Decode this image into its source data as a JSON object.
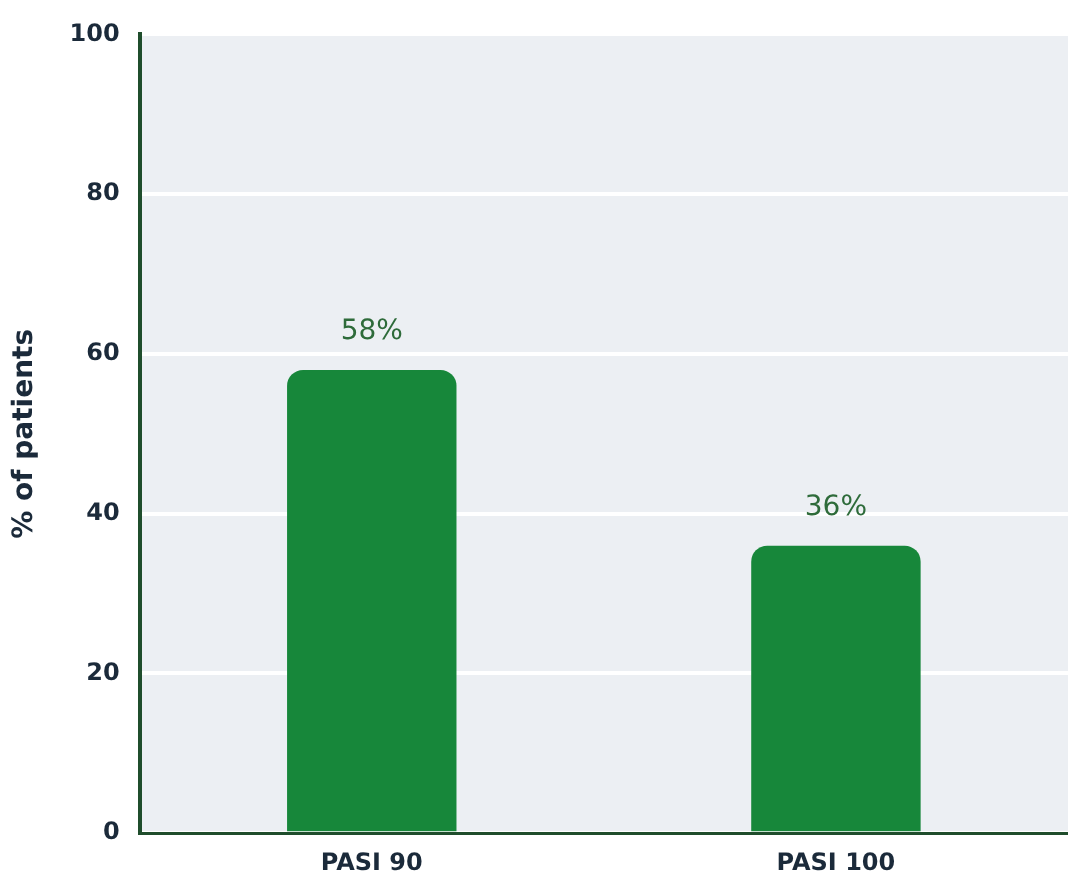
{
  "chart_data": {
    "type": "bar",
    "ylabel": "% of patients",
    "categories": [
      "PASI 90",
      "PASI 100"
    ],
    "values": [
      58,
      36
    ],
    "color": "#17873a",
    "value_labels": [
      "58%",
      "36%"
    ],
    "ylim": [
      0,
      100
    ],
    "yticks": [
      0,
      20,
      40,
      60,
      80,
      100
    ],
    "grid": "y",
    "legend": false
  }
}
